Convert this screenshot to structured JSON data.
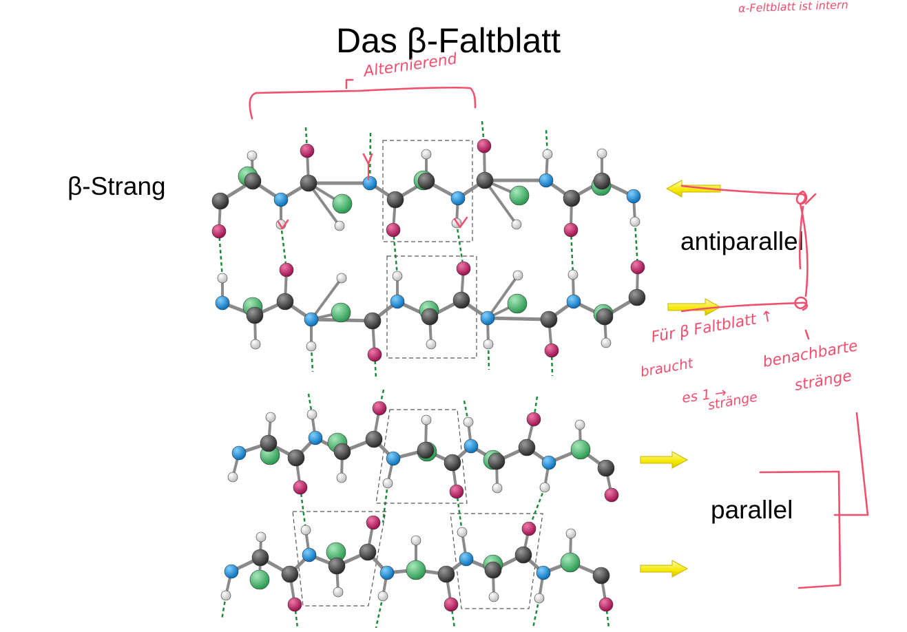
{
  "title": "Das β-Faltblatt",
  "labels": {
    "strand": "β-Strang",
    "antiparallel": "antiparallel",
    "parallel": "parallel"
  },
  "annotations": {
    "top_right": "α-Feltblatt ist intern",
    "alternierend": "Alternierend",
    "fur_line": "Für β Faltblatt ↑",
    "braucht": "braucht",
    "es_arrow": "es 1 →",
    "strange_1": "stränge",
    "benachbarte": "benachbarte",
    "strange_2": "stränge"
  },
  "colors": {
    "carbon": "#444444",
    "nitrogen": "#1e90d8",
    "oxygen": "#c8246a",
    "hydrogen": "#f2f2f2",
    "side_chain": "#3fae64",
    "hbond": "#1a8a3a",
    "arrow": "#f5e800",
    "ink": "#f0506e"
  }
}
